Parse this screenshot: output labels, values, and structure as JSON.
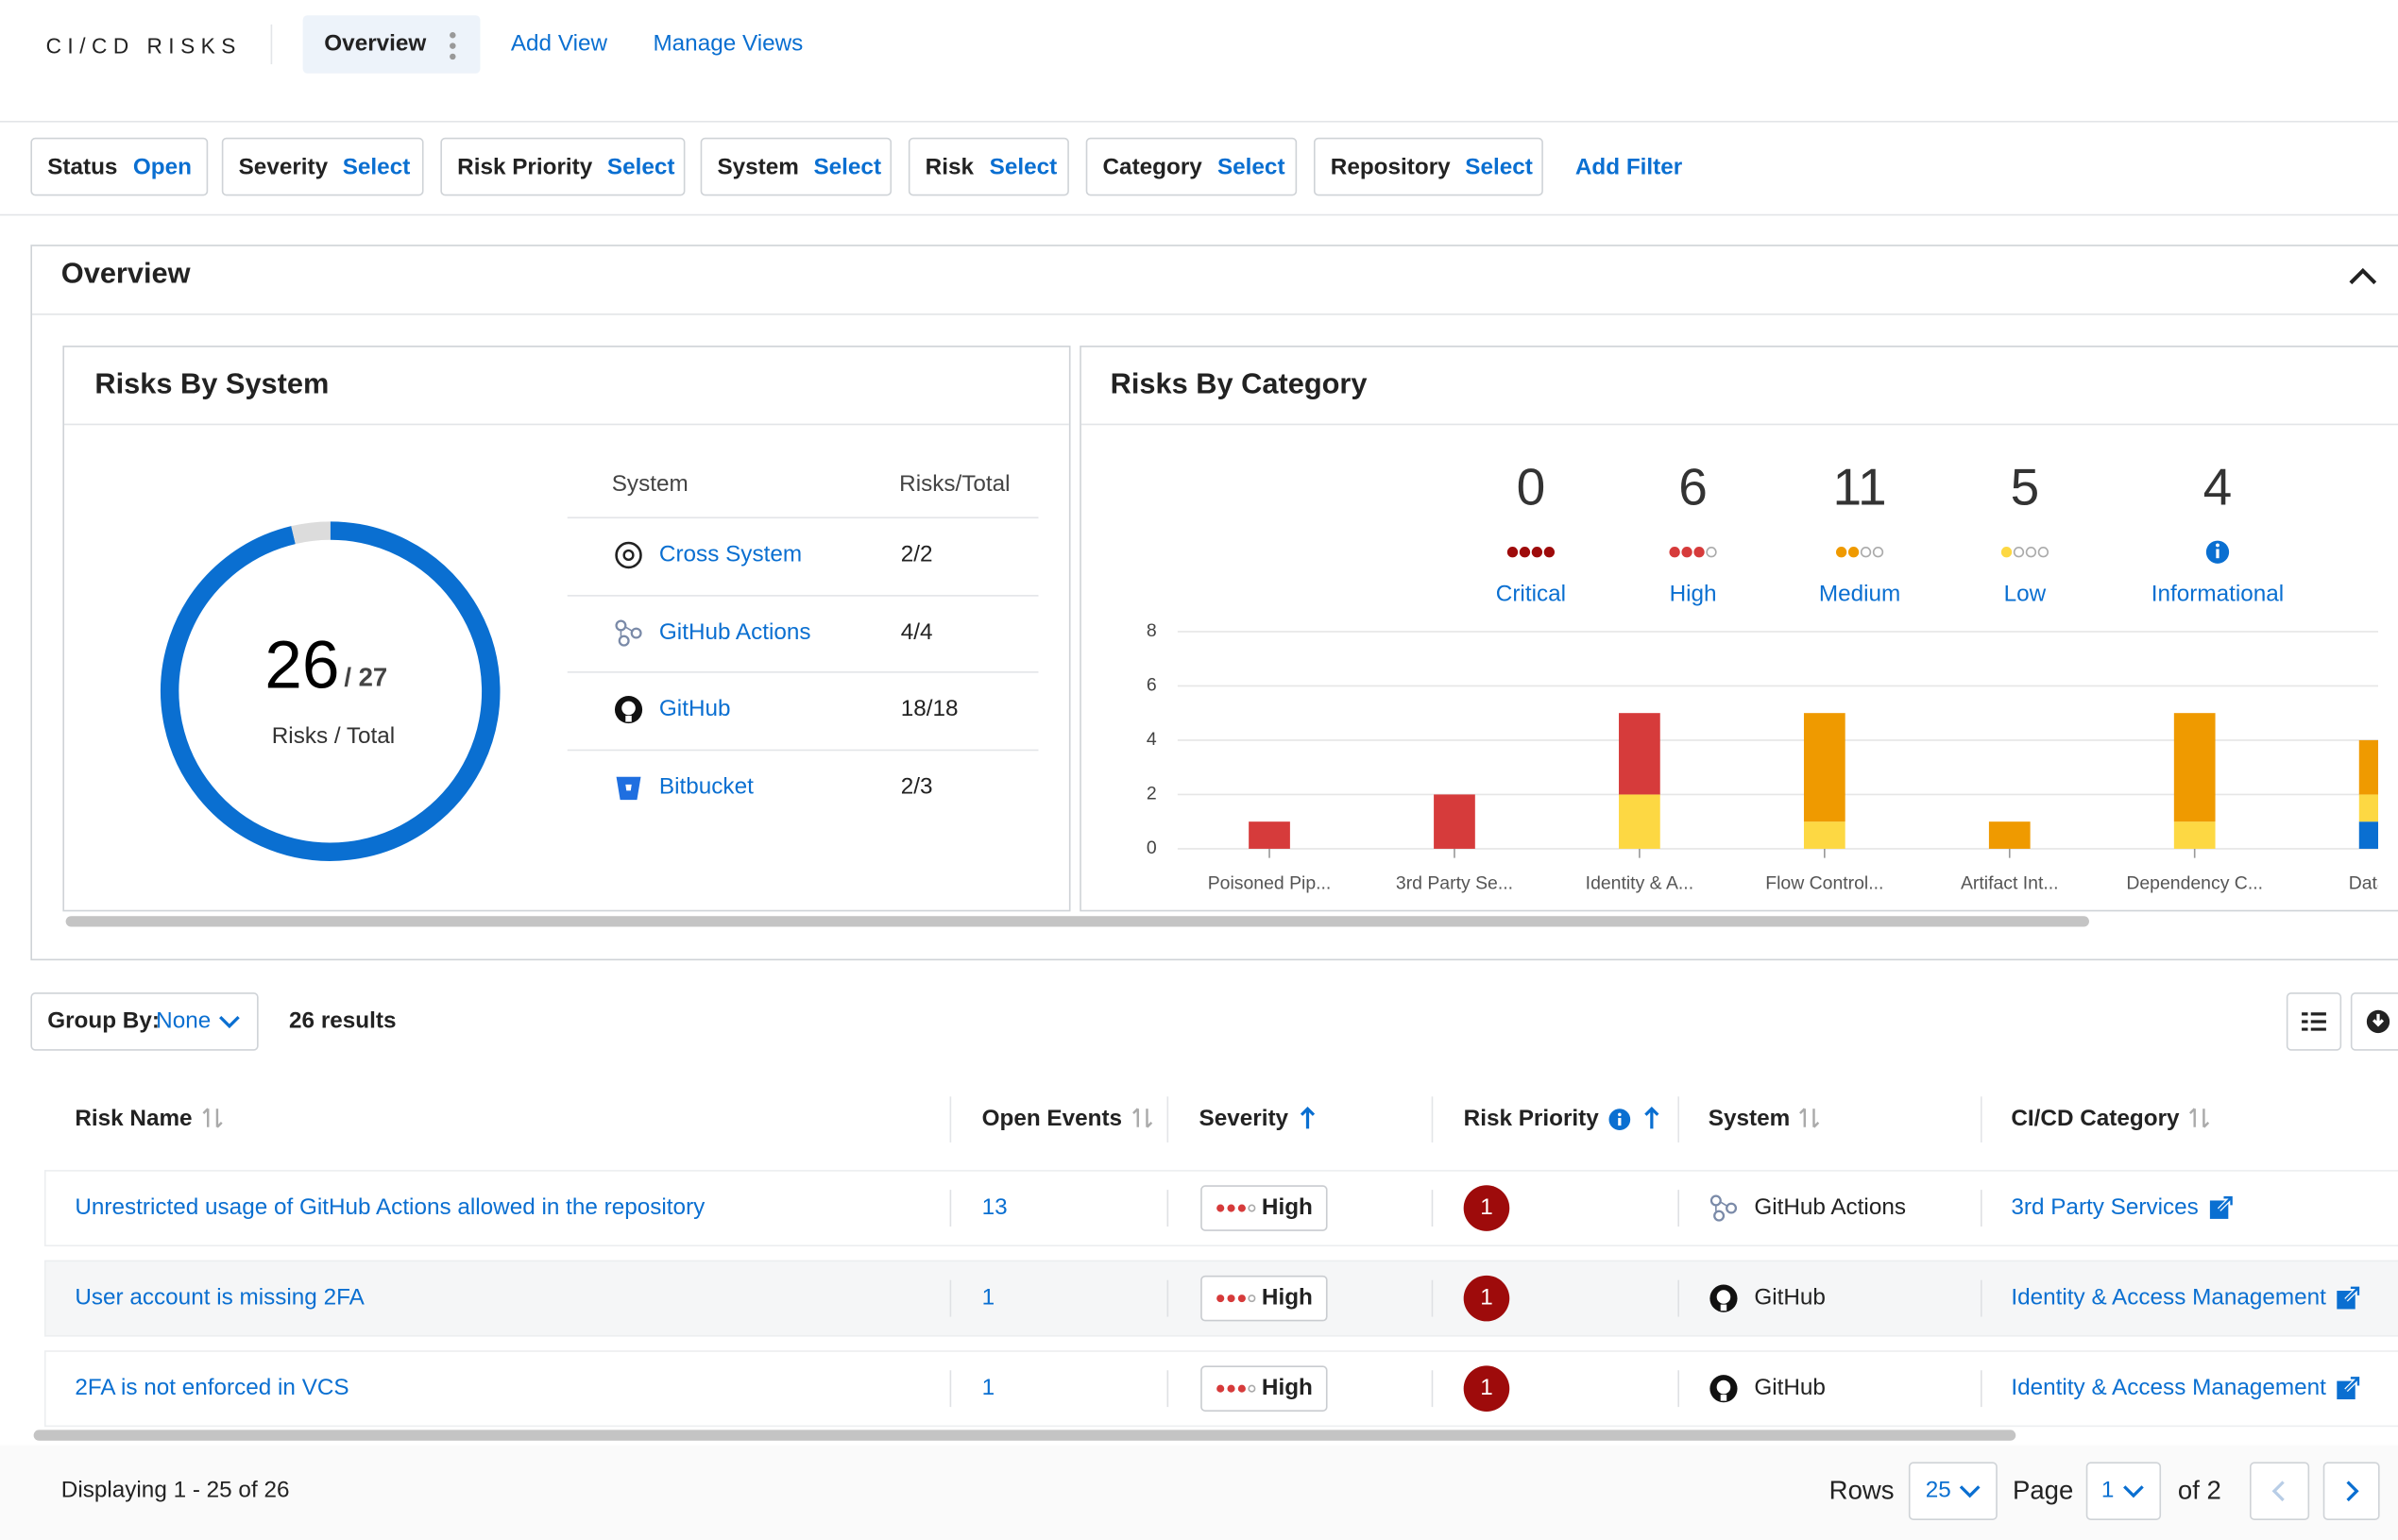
{
  "header": {
    "app_title": "CI/CD RISKS",
    "tabs": [
      "Overview",
      "Add View",
      "Manage Views"
    ]
  },
  "filters": {
    "items": [
      {
        "label": "Status",
        "value": "Open"
      },
      {
        "label": "Severity",
        "value": "Select"
      },
      {
        "label": "Risk Priority",
        "value": "Select"
      },
      {
        "label": "System",
        "value": "Select"
      },
      {
        "label": "Risk",
        "value": "Select"
      },
      {
        "label": "Category",
        "value": "Select"
      },
      {
        "label": "Repository",
        "value": "Select"
      }
    ],
    "add_filter": "Add Filter"
  },
  "overview": {
    "title": "Overview"
  },
  "chart_data": [
    {
      "type": "donut",
      "title": "Risks By System",
      "value": 26,
      "total": 27,
      "total_label": "/ 27",
      "center_label": "Risks / Total",
      "color": "#0a6fd1",
      "rest_color": "#dcdcdc"
    },
    {
      "type": "bar",
      "stacked": true,
      "title": "Risks By Category",
      "categories": [
        "Poisoned Pip...",
        "3rd Party Se...",
        "Identity & A...",
        "Flow Control...",
        "Artifact Int...",
        "Dependency C...",
        "Data Pr"
      ],
      "series": [
        {
          "name": "Critical",
          "color": "#9e0b0b",
          "values": [
            0,
            0,
            0,
            0,
            0,
            0,
            0
          ]
        },
        {
          "name": "High",
          "color": "#d63b3b",
          "values": [
            1,
            2,
            3,
            0,
            0,
            0,
            0
          ]
        },
        {
          "name": "Medium",
          "color": "#ef9a00",
          "values": [
            0,
            0,
            0,
            4,
            1,
            4,
            2
          ]
        },
        {
          "name": "Low",
          "color": "#fdd843",
          "values": [
            0,
            0,
            2,
            1,
            0,
            1,
            1
          ]
        },
        {
          "name": "Informational",
          "color": "#0a6fd1",
          "values": [
            0,
            0,
            0,
            0,
            0,
            0,
            1
          ]
        }
      ],
      "totals": [
        0,
        6,
        11,
        5,
        4
      ],
      "ylim": [
        0,
        8
      ],
      "yticks": [
        0,
        2,
        4,
        6,
        8
      ],
      "grid": true
    }
  ],
  "systems_table": {
    "columns": [
      "System",
      "Risks/Total"
    ],
    "rows": [
      [
        "Cross System",
        "2/2"
      ],
      [
        "GitHub Actions",
        "4/4"
      ],
      [
        "GitHub",
        "18/18"
      ],
      [
        "Bitbucket",
        "2/3"
      ]
    ]
  },
  "results": {
    "group_by_label": "Group By:",
    "group_by_value": "None",
    "count": "26 results",
    "columns": [
      "Risk Name",
      "Open Events",
      "Severity",
      "Risk Priority",
      "System",
      "CI/CD Category"
    ],
    "rows": [
      [
        "Unrestricted usage of GitHub Actions allowed in the repository",
        "13",
        "High",
        "1",
        "GitHub Actions",
        "3rd Party Services"
      ],
      [
        "User account is missing 2FA",
        "1",
        "High",
        "1",
        "GitHub",
        "Identity & Access Management"
      ],
      [
        "2FA is not enforced in VCS",
        "1",
        "High",
        "1",
        "GitHub",
        "Identity & Access Management"
      ]
    ]
  },
  "footer": {
    "displaying": "Displaying 1 - 25 of 26",
    "rows_label": "Rows",
    "rows_value": "25",
    "page_label": "Page",
    "page_value": "1",
    "page_of": "of 2"
  }
}
